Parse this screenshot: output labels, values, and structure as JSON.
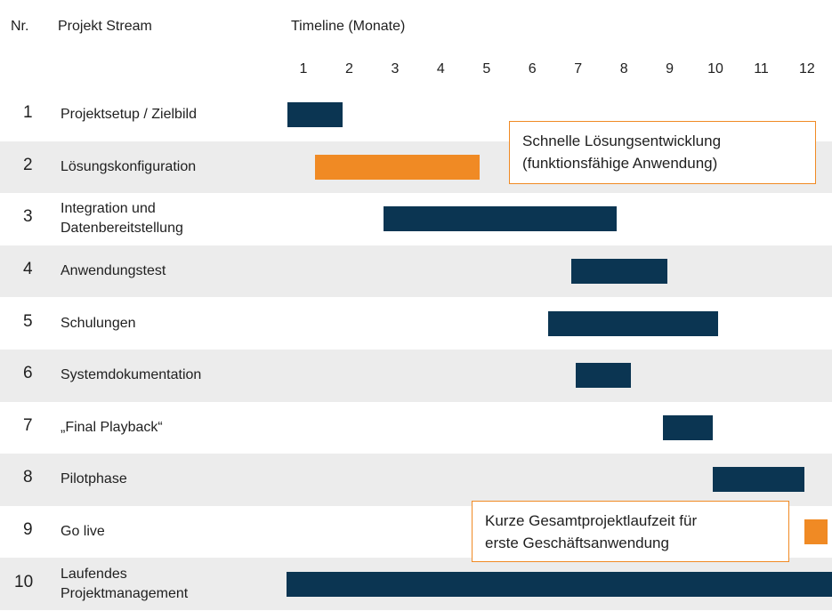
{
  "header": {
    "nr": "Nr.",
    "stream": "Projekt Stream",
    "timeline": "Timeline (Monate)"
  },
  "chart_data": {
    "type": "gantt",
    "title": "Timeline (Monate)",
    "months": [
      "1",
      "2",
      "3",
      "4",
      "5",
      "6",
      "7",
      "8",
      "9",
      "10",
      "11",
      "12"
    ],
    "colors": {
      "primary": "#0b3552",
      "highlight": "#f08a24",
      "shade": "#ececec"
    },
    "tasks": [
      {
        "nr": "1",
        "label": "Projektsetup / Zielbild",
        "start": 0.8,
        "end": 2.0,
        "color": "primary"
      },
      {
        "nr": "2",
        "label": "Lösungskonfiguration",
        "start": 1.4,
        "end": 5.0,
        "color": "highlight"
      },
      {
        "nr": "3",
        "label": "Integration und\nDatenbereitstellung",
        "start": 2.9,
        "end": 8.0,
        "color": "primary"
      },
      {
        "nr": "4",
        "label": "Anwendungstest",
        "start": 7.0,
        "end": 9.1,
        "color": "primary"
      },
      {
        "nr": "5",
        "label": "Schulungen",
        "start": 6.5,
        "end": 10.2,
        "color": "primary"
      },
      {
        "nr": "6",
        "label": "Systemdokumentation",
        "start": 7.1,
        "end": 8.3,
        "color": "primary"
      },
      {
        "nr": "7",
        "label": "„Final Playback“",
        "start": 9.0,
        "end": 10.1,
        "color": "primary"
      },
      {
        "nr": "8",
        "label": "Pilotphase",
        "start": 10.1,
        "end": 12.1,
        "color": "primary"
      },
      {
        "nr": "9",
        "label": "Go live",
        "start": 12.1,
        "end": 12.6,
        "color": "highlight"
      },
      {
        "nr": "10",
        "label": "Laufendes\nProjektmanagement",
        "start": 0.8,
        "end": 12.6,
        "color": "primary"
      }
    ],
    "annotations": [
      {
        "line1": "Schnelle Lösungsentwicklung",
        "line2": "(funktionsfähige Anwendung)"
      },
      {
        "line1_bold": "Kurze Gesamtprojektlaufzeit",
        "line1_rest": " für",
        "line2": "erste Geschäftsanwendung"
      }
    ]
  }
}
